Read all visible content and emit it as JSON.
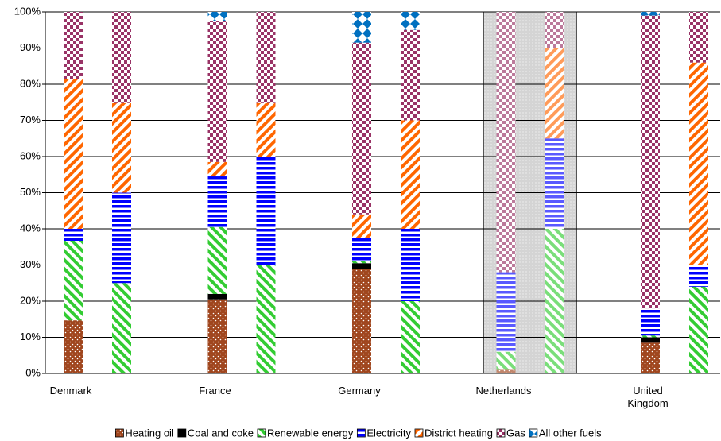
{
  "chart_data": {
    "type": "stacked_bar",
    "categories": [
      "Denmark",
      null,
      "France",
      null,
      "Germany",
      null,
      "Netherlands",
      null,
      "United Kingdom",
      null
    ],
    "series": [
      {
        "name": "Heating oil",
        "color": "#a0461e",
        "values": [
          14.7,
          0,
          20.5,
          0,
          29,
          0,
          1,
          0,
          8.5,
          0
        ]
      },
      {
        "name": "Coal and coke",
        "color": "#000000",
        "values": [
          0,
          0,
          1.5,
          0,
          1.5,
          0,
          0,
          0,
          1.5,
          0
        ]
      },
      {
        "name": "Renewable energy",
        "color": "#33cc33",
        "values": [
          22,
          25,
          18.5,
          30,
          0.5,
          20,
          5,
          40,
          0.5,
          24
        ]
      },
      {
        "name": "Electricity",
        "color": "#0000ff",
        "values": [
          3.3,
          25,
          14,
          30,
          6.5,
          20,
          22,
          25,
          7.5,
          6
        ]
      },
      {
        "name": "District heating",
        "color": "#ff6600",
        "values": [
          41.5,
          25,
          4,
          15,
          6.5,
          30,
          0,
          25,
          0,
          56
        ]
      },
      {
        "name": "Gas",
        "color": "#993366",
        "values": [
          18.5,
          25,
          39,
          25,
          47.5,
          25,
          72,
          10,
          81,
          14
        ]
      },
      {
        "name": "All other fuels",
        "color": "#0070c0",
        "values": [
          0,
          0,
          2.5,
          0,
          8.5,
          5,
          0,
          0,
          1,
          0
        ]
      }
    ],
    "ylim": [
      0,
      100
    ],
    "yticks": [
      {
        "value": 0,
        "label": "0%"
      },
      {
        "value": 10,
        "label": "10%"
      },
      {
        "value": 20,
        "label": "20%"
      },
      {
        "value": 30,
        "label": "30%"
      },
      {
        "value": 40,
        "label": "40%"
      },
      {
        "value": 50,
        "label": "50%"
      },
      {
        "value": 60,
        "label": "60%"
      },
      {
        "value": 70,
        "label": "70%"
      },
      {
        "value": 80,
        "label": "80%"
      },
      {
        "value": 90,
        "label": "90%"
      },
      {
        "value": 100,
        "label": "100%"
      }
    ],
    "grid": true,
    "legend": "bottom"
  }
}
